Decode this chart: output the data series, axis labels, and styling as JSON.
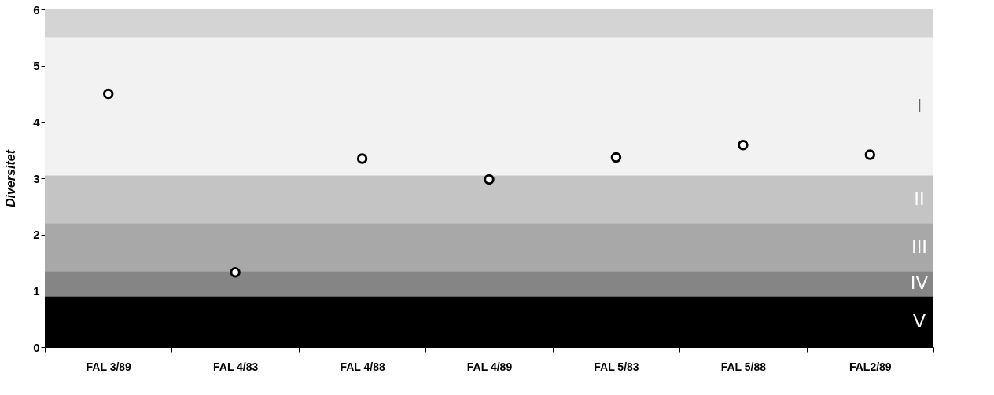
{
  "chart_data": {
    "type": "scatter",
    "ylabel": "Diversitet",
    "categories": [
      "FAL 3/89",
      "FAL 4/83",
      "FAL 4/88",
      "FAL 4/89",
      "FAL 5/83",
      "FAL 5/88",
      "FAL2/89"
    ],
    "series": [
      {
        "color": "#000000",
        "values": [
          4.5,
          1.33,
          3.35,
          2.98,
          3.37,
          3.59,
          3.42
        ]
      }
    ],
    "ylim": [
      0,
      6
    ],
    "yticks": [
      0,
      1,
      2,
      3,
      4,
      5,
      6
    ],
    "marker": "circle",
    "grid": false,
    "bands": [
      {
        "axis": "y",
        "from": 5.5,
        "to": 6,
        "color": "#d4d4d4"
      },
      {
        "axis": "y",
        "from": 3.05,
        "to": 5.5,
        "label": "I",
        "color": "#f2f2f2"
      },
      {
        "axis": "y",
        "from": 2.2,
        "to": 3.05,
        "label": "II",
        "color": "#c4c4c4"
      },
      {
        "axis": "y",
        "from": 1.35,
        "to": 2.2,
        "label": "III",
        "color": "#a8a8a8"
      },
      {
        "axis": "y",
        "from": 0.9,
        "to": 1.35,
        "label": "IV",
        "color": "#858585"
      },
      {
        "axis": "y",
        "from": 0,
        "to": 0.9,
        "label": "V",
        "color": "#000000"
      }
    ]
  }
}
